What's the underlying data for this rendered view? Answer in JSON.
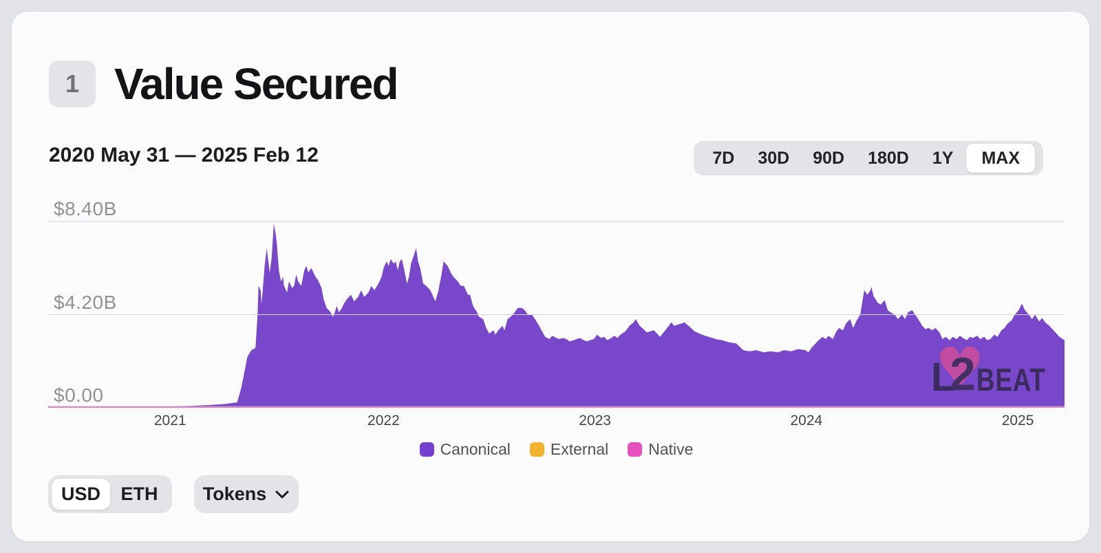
{
  "page": {
    "background": "#e1e3e8",
    "card_background": "#fbfbfc"
  },
  "header": {
    "rank_badge": "1",
    "title": "Value Secured"
  },
  "toolbar": {
    "date_range": "2020 May 31 — 2025 Feb 12",
    "range_options": [
      {
        "label": "7D",
        "selected": false
      },
      {
        "label": "30D",
        "selected": false
      },
      {
        "label": "90D",
        "selected": false
      },
      {
        "label": "180D",
        "selected": false
      },
      {
        "label": "1Y",
        "selected": false
      },
      {
        "label": "MAX",
        "selected": true
      }
    ]
  },
  "chart_data": {
    "type": "area",
    "title": "Value Secured",
    "unit": "USD billions",
    "x_range": [
      "2020-05-31",
      "2025-02-12"
    ],
    "ylim": [
      0,
      8.4
    ],
    "grid": true,
    "y_ticks": [
      {
        "label": "$8.40B",
        "value": 8.4
      },
      {
        "label": "$4.20B",
        "value": 4.2
      },
      {
        "label": "$0.00",
        "value": 0
      }
    ],
    "x_ticks": [
      {
        "label": "2021",
        "t": 0.12
      },
      {
        "label": "2022",
        "t": 0.33
      },
      {
        "label": "2023",
        "t": 0.538
      },
      {
        "label": "2024",
        "t": 0.746
      },
      {
        "label": "2025",
        "t": 0.954
      }
    ],
    "legend": [
      {
        "label": "Canonical",
        "color": "#7640cf"
      },
      {
        "label": "External",
        "color": "#f2b230"
      },
      {
        "label": "Native",
        "color": "#e650bd"
      }
    ],
    "legend_position": "bottom-center",
    "baseline_sliver": {
      "series": "Native",
      "color": "#d98fc9",
      "thickness_px": 2.5
    },
    "series": [
      {
        "name": "Canonical",
        "color": "#7847ca",
        "points": [
          [
            0,
            0.02
          ],
          [
            0.03,
            0.02
          ],
          [
            0.06,
            0.04
          ],
          [
            0.072,
            0.06
          ],
          [
            0.08,
            0.05
          ],
          [
            0.1,
            0.06
          ],
          [
            0.12,
            0.07
          ],
          [
            0.14,
            0.09
          ],
          [
            0.16,
            0.13
          ],
          [
            0.175,
            0.18
          ],
          [
            0.186,
            0.25
          ],
          [
            0.19,
            0.9
          ],
          [
            0.193,
            1.6
          ],
          [
            0.196,
            2.3
          ],
          [
            0.2,
            2.6
          ],
          [
            0.204,
            2.7
          ],
          [
            0.206,
            4.2
          ],
          [
            0.207,
            5.5
          ],
          [
            0.209,
            5.3
          ],
          [
            0.21,
            4.7
          ],
          [
            0.213,
            6.4
          ],
          [
            0.215,
            7.2
          ],
          [
            0.218,
            6.1
          ],
          [
            0.22,
            6.8
          ],
          [
            0.222,
            8.3
          ],
          [
            0.224,
            7.8
          ],
          [
            0.225,
            7.4
          ],
          [
            0.227,
            6.2
          ],
          [
            0.229,
            5.7
          ],
          [
            0.231,
            5.9
          ],
          [
            0.232,
            5.5
          ],
          [
            0.235,
            5.2
          ],
          [
            0.237,
            5.7
          ],
          [
            0.24,
            5.4
          ],
          [
            0.242,
            5.5
          ],
          [
            0.244,
            6.0
          ],
          [
            0.246,
            5.7
          ],
          [
            0.249,
            5.5
          ],
          [
            0.252,
            6.2
          ],
          [
            0.254,
            6.4
          ],
          [
            0.256,
            6.1
          ],
          [
            0.259,
            6.3
          ],
          [
            0.261,
            6.1
          ],
          [
            0.263,
            5.9
          ],
          [
            0.265,
            5.8
          ],
          [
            0.267,
            5.6
          ],
          [
            0.269,
            5.4
          ],
          [
            0.271,
            4.9
          ],
          [
            0.274,
            4.5
          ],
          [
            0.276,
            4.4
          ],
          [
            0.278,
            4.3
          ],
          [
            0.28,
            4.1
          ],
          [
            0.282,
            4.3
          ],
          [
            0.284,
            4.6
          ],
          [
            0.286,
            4.3
          ],
          [
            0.289,
            4.5
          ],
          [
            0.291,
            4.7
          ],
          [
            0.294,
            4.9
          ],
          [
            0.298,
            5.1
          ],
          [
            0.301,
            4.8
          ],
          [
            0.305,
            5.0
          ],
          [
            0.308,
            5.3
          ],
          [
            0.311,
            5.0
          ],
          [
            0.315,
            5.2
          ],
          [
            0.318,
            5.5
          ],
          [
            0.321,
            5.3
          ],
          [
            0.325,
            5.6
          ],
          [
            0.328,
            5.9
          ],
          [
            0.33,
            6.3
          ],
          [
            0.333,
            6.6
          ],
          [
            0.335,
            6.4
          ],
          [
            0.337,
            6.7
          ],
          [
            0.34,
            6.5
          ],
          [
            0.342,
            6.6
          ],
          [
            0.344,
            6.2
          ],
          [
            0.346,
            6.6
          ],
          [
            0.348,
            6.7
          ],
          [
            0.35,
            6.3
          ],
          [
            0.353,
            5.6
          ],
          [
            0.355,
            5.9
          ],
          [
            0.357,
            6.5
          ],
          [
            0.36,
            6.9
          ],
          [
            0.362,
            7.2
          ],
          [
            0.364,
            6.6
          ],
          [
            0.366,
            6.3
          ],
          [
            0.369,
            5.6
          ],
          [
            0.372,
            5.5
          ],
          [
            0.376,
            5.3
          ],
          [
            0.379,
            5.0
          ],
          [
            0.381,
            4.8
          ],
          [
            0.384,
            5.3
          ],
          [
            0.387,
            6.0
          ],
          [
            0.389,
            6.6
          ],
          [
            0.393,
            6.4
          ],
          [
            0.396,
            6.1
          ],
          [
            0.399,
            5.9
          ],
          [
            0.403,
            5.7
          ],
          [
            0.406,
            5.5
          ],
          [
            0.409,
            5.5
          ],
          [
            0.413,
            5.1
          ],
          [
            0.415,
            5.1
          ],
          [
            0.418,
            4.6
          ],
          [
            0.422,
            4.3
          ],
          [
            0.424,
            4.1
          ],
          [
            0.428,
            4.0
          ],
          [
            0.431,
            3.6
          ],
          [
            0.434,
            3.35
          ],
          [
            0.438,
            3.5
          ],
          [
            0.44,
            3.3
          ],
          [
            0.443,
            3.5
          ],
          [
            0.447,
            3.7
          ],
          [
            0.449,
            3.5
          ],
          [
            0.452,
            4.0
          ],
          [
            0.455,
            4.1
          ],
          [
            0.459,
            4.3
          ],
          [
            0.462,
            4.5
          ],
          [
            0.466,
            4.5
          ],
          [
            0.469,
            4.4
          ],
          [
            0.472,
            4.2
          ],
          [
            0.476,
            4.2
          ],
          [
            0.479,
            4.0
          ],
          [
            0.483,
            3.7
          ],
          [
            0.486,
            3.45
          ],
          [
            0.489,
            3.2
          ],
          [
            0.493,
            3.1
          ],
          [
            0.496,
            3.25
          ],
          [
            0.5,
            3.15
          ],
          [
            0.503,
            3.1
          ],
          [
            0.506,
            3.15
          ],
          [
            0.51,
            3.1
          ],
          [
            0.513,
            3.0
          ],
          [
            0.517,
            3.05
          ],
          [
            0.52,
            3.1
          ],
          [
            0.523,
            3.15
          ],
          [
            0.527,
            3.05
          ],
          [
            0.53,
            3.0
          ],
          [
            0.533,
            3.05
          ],
          [
            0.537,
            3.1
          ],
          [
            0.54,
            3.3
          ],
          [
            0.544,
            3.15
          ],
          [
            0.547,
            3.2
          ],
          [
            0.55,
            3.05
          ],
          [
            0.554,
            3.15
          ],
          [
            0.557,
            3.25
          ],
          [
            0.56,
            3.15
          ],
          [
            0.563,
            3.3
          ],
          [
            0.568,
            3.45
          ],
          [
            0.572,
            3.7
          ],
          [
            0.576,
            3.85
          ],
          [
            0.578,
            4.0
          ],
          [
            0.582,
            3.7
          ],
          [
            0.589,
            3.4
          ],
          [
            0.596,
            3.5
          ],
          [
            0.602,
            3.2
          ],
          [
            0.609,
            3.6
          ],
          [
            0.613,
            3.85
          ],
          [
            0.616,
            3.7
          ],
          [
            0.623,
            3.8
          ],
          [
            0.626,
            3.85
          ],
          [
            0.63,
            3.7
          ],
          [
            0.636,
            3.45
          ],
          [
            0.643,
            3.3
          ],
          [
            0.65,
            3.2
          ],
          [
            0.657,
            3.1
          ],
          [
            0.663,
            3.05
          ],
          [
            0.67,
            2.95
          ],
          [
            0.677,
            2.9
          ],
          [
            0.684,
            2.6
          ],
          [
            0.69,
            2.55
          ],
          [
            0.697,
            2.6
          ],
          [
            0.704,
            2.5
          ],
          [
            0.711,
            2.55
          ],
          [
            0.718,
            2.5
          ],
          [
            0.724,
            2.6
          ],
          [
            0.731,
            2.55
          ],
          [
            0.738,
            2.65
          ],
          [
            0.745,
            2.6
          ],
          [
            0.748,
            2.5
          ],
          [
            0.751,
            2.7
          ],
          [
            0.758,
            3.05
          ],
          [
            0.762,
            3.2
          ],
          [
            0.765,
            3.1
          ],
          [
            0.768,
            3.25
          ],
          [
            0.772,
            3.1
          ],
          [
            0.775,
            3.4
          ],
          [
            0.778,
            3.6
          ],
          [
            0.782,
            3.5
          ],
          [
            0.785,
            3.8
          ],
          [
            0.789,
            4.0
          ],
          [
            0.792,
            3.6
          ],
          [
            0.795,
            3.9
          ],
          [
            0.799,
            4.2
          ],
          [
            0.802,
            5.05
          ],
          [
            0.803,
            5.3
          ],
          [
            0.806,
            5.1
          ],
          [
            0.809,
            5.3
          ],
          [
            0.81,
            5.45
          ],
          [
            0.812,
            5.05
          ],
          [
            0.816,
            4.75
          ],
          [
            0.819,
            4.65
          ],
          [
            0.823,
            4.85
          ],
          [
            0.826,
            4.4
          ],
          [
            0.829,
            4.3
          ],
          [
            0.833,
            4.2
          ],
          [
            0.836,
            4.0
          ],
          [
            0.84,
            4.2
          ],
          [
            0.843,
            4.0
          ],
          [
            0.846,
            4.3
          ],
          [
            0.85,
            4.4
          ],
          [
            0.853,
            4.2
          ],
          [
            0.856,
            4.0
          ],
          [
            0.86,
            3.7
          ],
          [
            0.863,
            3.55
          ],
          [
            0.866,
            3.6
          ],
          [
            0.87,
            3.5
          ],
          [
            0.873,
            3.6
          ],
          [
            0.877,
            3.4
          ],
          [
            0.88,
            3.1
          ],
          [
            0.883,
            3.2
          ],
          [
            0.887,
            3.05
          ],
          [
            0.89,
            3.2
          ],
          [
            0.894,
            3.1
          ],
          [
            0.897,
            3.25
          ],
          [
            0.9,
            3.15
          ],
          [
            0.904,
            3.05
          ],
          [
            0.907,
            3.2
          ],
          [
            0.91,
            3.15
          ],
          [
            0.914,
            3.25
          ],
          [
            0.917,
            3.1
          ],
          [
            0.921,
            3.2
          ],
          [
            0.924,
            3.05
          ],
          [
            0.927,
            3.1
          ],
          [
            0.931,
            3.3
          ],
          [
            0.934,
            3.2
          ],
          [
            0.938,
            3.5
          ],
          [
            0.941,
            3.6
          ],
          [
            0.944,
            3.8
          ],
          [
            0.948,
            3.95
          ],
          [
            0.951,
            4.2
          ],
          [
            0.955,
            4.4
          ],
          [
            0.958,
            4.7
          ],
          [
            0.961,
            4.4
          ],
          [
            0.965,
            4.2
          ],
          [
            0.968,
            4.0
          ],
          [
            0.971,
            4.2
          ],
          [
            0.975,
            3.9
          ],
          [
            0.978,
            4.05
          ],
          [
            0.981,
            3.85
          ],
          [
            0.985,
            3.7
          ],
          [
            0.988,
            3.55
          ],
          [
            0.991,
            3.4
          ],
          [
            0.995,
            3.2
          ],
          [
            1,
            3.05
          ]
        ]
      }
    ]
  },
  "watermark": {
    "heart_glyph": "♥",
    "logo_l": "L",
    "logo_2": "2",
    "logo_beat": "BEAT"
  },
  "controls": {
    "currency_options": [
      {
        "label": "USD",
        "selected": true
      },
      {
        "label": "ETH",
        "selected": false
      }
    ],
    "tokens_label": "Tokens"
  }
}
